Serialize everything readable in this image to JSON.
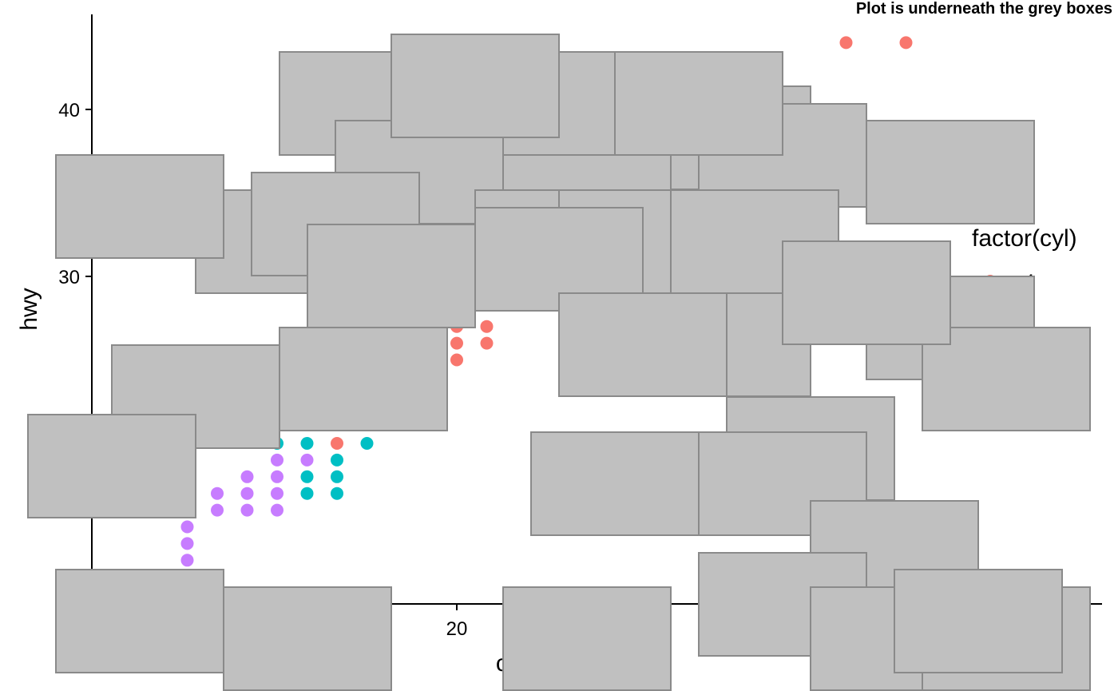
{
  "chart_data": {
    "type": "scatter",
    "title": "Plot is underneath the grey boxes",
    "xlabel": "cty",
    "ylabel": "hwy",
    "xlim": [
      8.5,
      35.5
    ],
    "ylim": [
      10.3,
      45.9
    ],
    "x_ticks": [
      20
    ],
    "x_tick_labels": [
      "20"
    ],
    "y_ticks": [
      30,
      40
    ],
    "y_tick_labels": [
      "30",
      "40"
    ],
    "grid": false,
    "legend": {
      "title": "factor(cyl)",
      "position": "right",
      "entries": [
        "4"
      ]
    },
    "color_map": {
      "4": "#F8766D",
      "5": "#7CAE00",
      "6": "#00BFC4",
      "8": "#C77CFF"
    },
    "points": [
      {
        "x": 33,
        "y": 44,
        "group": "4"
      },
      {
        "x": 35,
        "y": 44,
        "group": "4"
      },
      {
        "x": 20,
        "y": 27,
        "group": "4"
      },
      {
        "x": 21,
        "y": 27,
        "group": "4"
      },
      {
        "x": 20,
        "y": 26,
        "group": "4"
      },
      {
        "x": 21,
        "y": 26,
        "group": "4"
      },
      {
        "x": 20,
        "y": 25,
        "group": "4"
      },
      {
        "x": 16,
        "y": 20,
        "group": "4"
      },
      {
        "x": 15,
        "y": 20,
        "group": "6"
      },
      {
        "x": 17,
        "y": 20,
        "group": "6"
      },
      {
        "x": 16,
        "y": 19,
        "group": "6"
      },
      {
        "x": 15,
        "y": 18,
        "group": "6"
      },
      {
        "x": 16,
        "y": 18,
        "group": "6"
      },
      {
        "x": 15,
        "y": 17,
        "group": "6"
      },
      {
        "x": 16,
        "y": 17,
        "group": "6"
      },
      {
        "x": 14,
        "y": 20,
        "group": "6"
      },
      {
        "x": 14,
        "y": 19,
        "group": "8"
      },
      {
        "x": 15,
        "y": 19,
        "group": "8"
      },
      {
        "x": 13,
        "y": 18,
        "group": "8"
      },
      {
        "x": 14,
        "y": 18,
        "group": "8"
      },
      {
        "x": 13,
        "y": 17,
        "group": "8"
      },
      {
        "x": 14,
        "y": 17,
        "group": "8"
      },
      {
        "x": 12,
        "y": 17,
        "group": "8"
      },
      {
        "x": 12,
        "y": 16,
        "group": "8"
      },
      {
        "x": 13,
        "y": 16,
        "group": "8"
      },
      {
        "x": 14,
        "y": 16,
        "group": "8"
      },
      {
        "x": 11,
        "y": 16,
        "group": "8"
      },
      {
        "x": 11,
        "y": 15,
        "group": "8"
      },
      {
        "x": 11,
        "y": 14,
        "group": "8"
      },
      {
        "x": 11,
        "y": 13,
        "group": "8"
      },
      {
        "x": 11,
        "y": 12,
        "group": "8"
      }
    ]
  }
}
